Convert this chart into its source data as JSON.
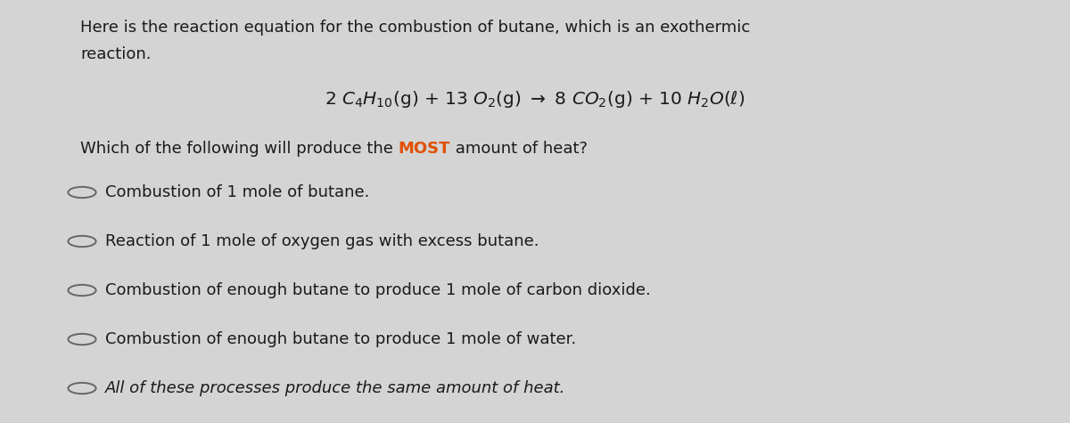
{
  "background_color": "#d4d4d4",
  "text_color": "#1a1a1a",
  "highlight_color": "#e05000",
  "intro_line1": "Here is the reaction equation for the combustion of butane, which is an exothermic",
  "intro_line2": "reaction.",
  "options": [
    "Combustion of 1 mole of butane.",
    "Reaction of 1 mole of oxygen gas with excess butane.",
    "Combustion of enough butane to produce 1 mole of carbon dioxide.",
    "Combustion of enough butane to produce 1 mole of water.",
    "All of these processes produce the same amount of heat."
  ],
  "fontsize_intro": 13.0,
  "fontsize_equation": 14.5,
  "fontsize_question": 13.0,
  "fontsize_options": 13.0
}
